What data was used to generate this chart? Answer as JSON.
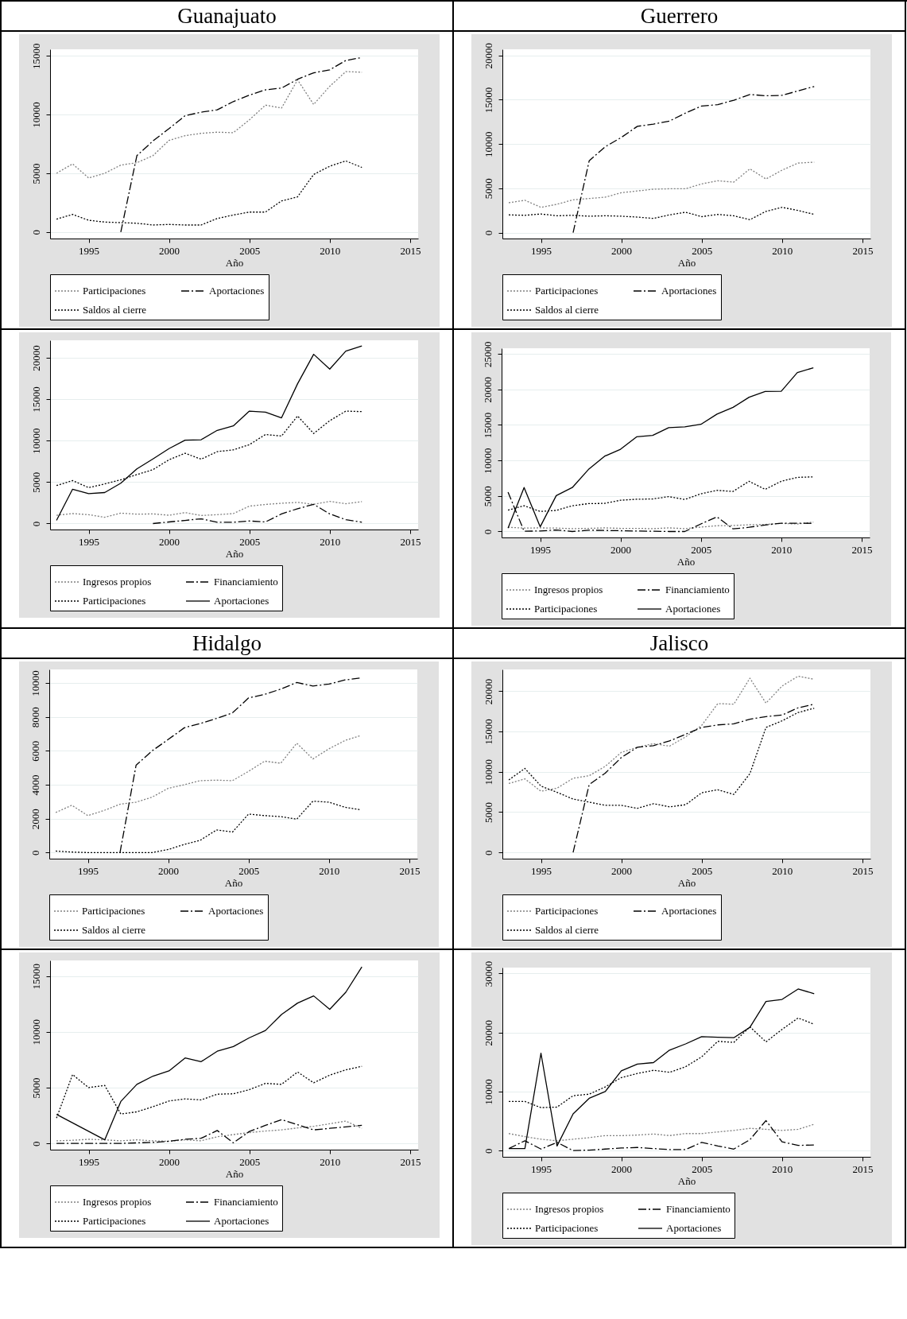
{
  "chart_data": [
    {
      "type": "line",
      "title": "Guanajuato",
      "xlabel": "Año",
      "x": [
        1993,
        1994,
        1995,
        1996,
        1997,
        1998,
        1999,
        2000,
        2001,
        2002,
        2003,
        2004,
        2005,
        2006,
        2007,
        2008,
        2009,
        2010,
        2011,
        2012
      ],
      "xlim": [
        1992.6,
        2015.5
      ],
      "xticks": [
        1995,
        2000,
        2005,
        2010,
        2015
      ],
      "ylim": [
        -550,
        15550
      ],
      "yticks": [
        0,
        5000,
        10000,
        15000
      ],
      "grid": "y",
      "legend": "bottom",
      "series": [
        {
          "name": "Participaciones",
          "color": "#808080",
          "line_style": "dotted",
          "values": [
            5000,
            5800,
            4600,
            5000,
            5700,
            5900,
            6500,
            7800,
            8200,
            8400,
            8500,
            8450,
            9550,
            10800,
            10550,
            12950,
            10850,
            12400,
            13650,
            13600
          ]
        },
        {
          "name": "Aportaciones",
          "color": "#000000",
          "line_style": "dashed",
          "values": [
            null,
            null,
            null,
            null,
            0,
            6500,
            7750,
            8800,
            9900,
            10200,
            10400,
            11100,
            11650,
            12100,
            12250,
            13000,
            13550,
            13800,
            14600,
            14850
          ]
        },
        {
          "name": "Saldos al cierre",
          "color": "#000000",
          "line_style": "dotted",
          "values": [
            1100,
            1500,
            1000,
            850,
            800,
            750,
            600,
            650,
            600,
            600,
            1150,
            1450,
            1700,
            1700,
            2650,
            3000,
            4900,
            5600,
            6050,
            5500
          ]
        }
      ]
    },
    {
      "type": "line",
      "title": "Guerrero",
      "xlabel": "Año",
      "x": [
        1993,
        1994,
        1995,
        1996,
        1997,
        1998,
        1999,
        2000,
        2001,
        2002,
        2003,
        2004,
        2005,
        2006,
        2007,
        2008,
        2009,
        2010,
        2011,
        2012
      ],
      "xlim": [
        1992.6,
        2015.5
      ],
      "xticks": [
        1995,
        2000,
        2005,
        2010,
        2015
      ],
      "ylim": [
        -670,
        20700
      ],
      "yticks": [
        0,
        5000,
        10000,
        15000,
        20000
      ],
      "grid": "y",
      "legend": "bottom",
      "series": [
        {
          "name": "Participaciones",
          "color": "#808080",
          "line_style": "dotted",
          "values": [
            3370,
            3650,
            2850,
            3200,
            3700,
            3850,
            4000,
            4500,
            4700,
            4900,
            4950,
            4950,
            5500,
            5850,
            5700,
            7200,
            6050,
            7050,
            7850,
            7950
          ]
        },
        {
          "name": "Aportaciones",
          "color": "#000000",
          "line_style": "dashed",
          "values": [
            null,
            null,
            null,
            null,
            0,
            8100,
            9700,
            10750,
            12000,
            12250,
            12600,
            13500,
            14300,
            14450,
            14950,
            15600,
            15450,
            15500,
            16000,
            16500
          ]
        },
        {
          "name": "Saldos al cierre",
          "color": "#000000",
          "line_style": "dotted",
          "values": [
            2000,
            1950,
            2100,
            1900,
            1950,
            1850,
            1900,
            1850,
            1750,
            1600,
            2000,
            2300,
            1800,
            2050,
            1900,
            1450,
            2400,
            2850,
            2500,
            2050
          ]
        }
      ]
    },
    {
      "type": "line",
      "xlabel": "Año",
      "x": [
        1993,
        1994,
        1995,
        1996,
        1997,
        1998,
        1999,
        2000,
        2001,
        2002,
        2003,
        2004,
        2005,
        2006,
        2007,
        2008,
        2009,
        2010,
        2011,
        2012
      ],
      "xlim": [
        1992.6,
        2015.5
      ],
      "xticks": [
        1995,
        2000,
        2005,
        2010,
        2015
      ],
      "ylim": [
        -720,
        22100
      ],
      "yticks": [
        0,
        5000,
        10000,
        15000,
        20000
      ],
      "grid": "y",
      "legend": "bottom",
      "series": [
        {
          "name": "Ingresos propios",
          "color": "#808080",
          "line_style": "dotted",
          "values": [
            1000,
            1200,
            1070,
            750,
            1250,
            1130,
            1160,
            1000,
            1320,
            970,
            1070,
            1200,
            2100,
            2300,
            2450,
            2550,
            2320,
            2670,
            2390,
            2640
          ]
        },
        {
          "name": "Financiamiento",
          "color": "#000000",
          "line_style": "dashed",
          "values": [
            null,
            null,
            null,
            null,
            null,
            null,
            0,
            190,
            380,
            570,
            160,
            160,
            310,
            190,
            1160,
            1790,
            2320,
            1160,
            470,
            160
          ]
        },
        {
          "name": "Participaciones",
          "color": "#000000",
          "line_style": "dotted",
          "values": [
            4580,
            5180,
            4330,
            4770,
            5270,
            5900,
            6500,
            7690,
            8480,
            7760,
            8670,
            8890,
            9510,
            10740,
            10550,
            12970,
            10860,
            12400,
            13560,
            13500
          ]
        },
        {
          "name": "Aportaciones",
          "color": "#000000",
          "line_style": "solid",
          "values": [
            380,
            4140,
            3610,
            3740,
            4870,
            6590,
            7790,
            9040,
            10050,
            10110,
            11240,
            11770,
            13560,
            13440,
            12750,
            16860,
            20410,
            18620,
            20790,
            21410
          ]
        }
      ]
    },
    {
      "type": "line",
      "xlabel": "Año",
      "x": [
        1993,
        1994,
        1995,
        1996,
        1997,
        1998,
        1999,
        2000,
        2001,
        2002,
        2003,
        2004,
        2005,
        2006,
        2007,
        2008,
        2009,
        2010,
        2011,
        2012
      ],
      "xlim": [
        1992.6,
        2015.5
      ],
      "xticks": [
        1995,
        2000,
        2005,
        2010,
        2015
      ],
      "ylim": [
        -840,
        25800
      ],
      "yticks": [
        0,
        5000,
        10000,
        15000,
        20000,
        25000
      ],
      "grid": "y",
      "legend": "bottom",
      "series": [
        {
          "name": "Ingresos propios",
          "color": "#808080",
          "line_style": "dotted",
          "values": [
            590,
            480,
            510,
            480,
            400,
            440,
            510,
            440,
            440,
            400,
            510,
            400,
            620,
            810,
            840,
            950,
            990,
            1140,
            1060,
            1320
          ]
        },
        {
          "name": "Financiamiento",
          "color": "#000000",
          "line_style": "dashed",
          "values": [
            5530,
            40,
            70,
            220,
            0,
            180,
            150,
            110,
            70,
            40,
            0,
            0,
            1060,
            2050,
            370,
            590,
            920,
            1170,
            1170,
            1140
          ]
        },
        {
          "name": "Participaciones",
          "color": "#000000",
          "line_style": "dotted",
          "values": [
            3000,
            3630,
            2820,
            2970,
            3630,
            3920,
            3960,
            4400,
            4540,
            4580,
            4910,
            4510,
            5310,
            5790,
            5640,
            7070,
            5930,
            7070,
            7620,
            7690
          ]
        },
        {
          "name": "Aportaciones",
          "color": "#000000",
          "line_style": "solid",
          "values": [
            480,
            6190,
            660,
            5050,
            6190,
            8720,
            10590,
            11580,
            13330,
            13520,
            14620,
            14730,
            15090,
            16520,
            17470,
            18900,
            19710,
            19740,
            22380,
            23040
          ]
        }
      ]
    },
    {
      "type": "line",
      "title": "Hidalgo",
      "xlabel": "Año",
      "x": [
        1993,
        1994,
        1995,
        1996,
        1997,
        1998,
        1999,
        2000,
        2001,
        2002,
        2003,
        2004,
        2005,
        2006,
        2007,
        2008,
        2009,
        2010,
        2011,
        2012
      ],
      "xlim": [
        1992.6,
        2015.5
      ],
      "xticks": [
        1995,
        2000,
        2005,
        2010,
        2015
      ],
      "ylim": [
        -360,
        10800
      ],
      "yticks": [
        0,
        2000,
        4000,
        6000,
        8000,
        10000
      ],
      "grid": "y",
      "legend": "bottom",
      "series": [
        {
          "name": "Participaciones",
          "color": "#808080",
          "line_style": "dotted",
          "values": [
            2360,
            2790,
            2180,
            2480,
            2850,
            2970,
            3270,
            3790,
            4000,
            4240,
            4270,
            4240,
            4790,
            5390,
            5270,
            6450,
            5520,
            6120,
            6610,
            6910
          ]
        },
        {
          "name": "Aportaciones",
          "color": "#000000",
          "line_style": "dashed",
          "values": [
            null,
            null,
            null,
            null,
            0,
            5150,
            6000,
            6670,
            7360,
            7610,
            7910,
            8240,
            9120,
            9330,
            9640,
            10030,
            9820,
            9940,
            10180,
            10300
          ]
        },
        {
          "name": "Saldos al cierre",
          "color": "#000000",
          "line_style": "dotted",
          "values": [
            90,
            30,
            0,
            0,
            0,
            0,
            0,
            180,
            480,
            730,
            1330,
            1210,
            2270,
            2180,
            2120,
            1970,
            3030,
            2970,
            2670,
            2520
          ]
        }
      ]
    },
    {
      "type": "line",
      "title": "Jalisco",
      "xlabel": "Año",
      "x": [
        1993,
        1994,
        1995,
        1996,
        1997,
        1998,
        1999,
        2000,
        2001,
        2002,
        2003,
        2004,
        2005,
        2006,
        2007,
        2008,
        2009,
        2010,
        2011,
        2012
      ],
      "xlim": [
        1992.6,
        2015.5
      ],
      "xticks": [
        1995,
        2000,
        2005,
        2010,
        2015
      ],
      "ylim": [
        -770,
        22700
      ],
      "yticks": [
        0,
        5000,
        10000,
        15000,
        20000
      ],
      "grid": "y",
      "legend": "bottom",
      "series": [
        {
          "name": "Participaciones",
          "color": "#808080",
          "line_style": "dotted",
          "values": [
            8550,
            9130,
            7590,
            7970,
            9200,
            9520,
            10680,
            12410,
            13050,
            13500,
            13180,
            14340,
            15760,
            18460,
            18390,
            21610,
            18520,
            20640,
            21860,
            21480
          ]
        },
        {
          "name": "Aportaciones",
          "color": "#000000",
          "line_style": "dashed",
          "values": [
            null,
            null,
            null,
            null,
            0,
            8420,
            9840,
            11770,
            13050,
            13250,
            13830,
            14660,
            15500,
            15820,
            15950,
            16530,
            16850,
            17040,
            17940,
            18390
          ]
        },
        {
          "name": "Saldos al cierre",
          "color": "#000000",
          "line_style": "dotted",
          "values": [
            9000,
            10420,
            8230,
            7460,
            6620,
            6240,
            5850,
            5850,
            5470,
            6050,
            5660,
            5920,
            7400,
            7780,
            7200,
            9770,
            15500,
            16330,
            17360,
            17880
          ]
        }
      ]
    },
    {
      "type": "line",
      "xlabel": "Año",
      "x": [
        1993,
        1994,
        1995,
        1996,
        1997,
        1998,
        1999,
        2000,
        2001,
        2002,
        2003,
        2004,
        2005,
        2006,
        2007,
        2008,
        2009,
        2010,
        2011,
        2012
      ],
      "xlim": [
        1992.6,
        2015.5
      ],
      "xticks": [
        1995,
        2000,
        2005,
        2010,
        2015
      ],
      "ylim": [
        -560,
        16400
      ],
      "yticks": [
        0,
        5000,
        10000,
        15000
      ],
      "grid": "y",
      "legend": "bottom",
      "series": [
        {
          "name": "Ingresos propios",
          "color": "#808080",
          "line_style": "dotted",
          "values": [
            230,
            280,
            370,
            320,
            230,
            320,
            230,
            190,
            320,
            230,
            600,
            790,
            970,
            1110,
            1210,
            1390,
            1530,
            1760,
            2000,
            1350
          ]
        },
        {
          "name": "Financiamiento",
          "color": "#000000",
          "line_style": "dashed",
          "values": [
            0,
            0,
            0,
            0,
            0,
            50,
            90,
            190,
            370,
            460,
            1160,
            50,
            1070,
            1620,
            2130,
            1670,
            1210,
            1350,
            1480,
            1620
          ]
        },
        {
          "name": "Participaciones",
          "color": "#000000",
          "line_style": "dotted",
          "values": [
            2270,
            6170,
            5000,
            5200,
            2640,
            2830,
            3290,
            3800,
            3990,
            3900,
            4410,
            4450,
            4820,
            5380,
            5290,
            6400,
            5430,
            6120,
            6590,
            6910
          ]
        },
        {
          "name": "Aportaciones",
          "color": "#000000",
          "line_style": "solid",
          "values": [
            2600,
            null,
            null,
            320,
            3760,
            5290,
            6030,
            6500,
            7660,
            7330,
            8260,
            8680,
            9470,
            10120,
            11550,
            12580,
            13220,
            12020,
            13550,
            15820
          ]
        }
      ]
    },
    {
      "type": "line",
      "xlabel": "Año",
      "x": [
        1993,
        1994,
        1995,
        1996,
        1997,
        1998,
        1999,
        2000,
        2001,
        2002,
        2003,
        2004,
        2005,
        2006,
        2007,
        2008,
        2009,
        2010,
        2011,
        2012
      ],
      "xlim": [
        1992.6,
        2015.5
      ],
      "xticks": [
        1995,
        2000,
        2005,
        2010,
        2015
      ],
      "ylim": [
        -1050,
        31000
      ],
      "yticks": [
        0,
        10000,
        20000,
        30000
      ],
      "grid": "y",
      "legend": "bottom",
      "series": [
        {
          "name": "Ingresos propios",
          "color": "#808080",
          "line_style": "dotted",
          "values": [
            2890,
            2370,
            1930,
            1670,
            1930,
            2190,
            2540,
            2540,
            2630,
            2810,
            2540,
            2890,
            2890,
            3160,
            3420,
            3770,
            3600,
            3420,
            3600,
            4470
          ]
        },
        {
          "name": "Financiamiento",
          "color": "#000000",
          "line_style": "dashed",
          "values": [
            350,
            1670,
            260,
            1400,
            0,
            90,
            260,
            440,
            530,
            350,
            180,
            180,
            1400,
            790,
            260,
            1840,
            5090,
            1490,
            880,
            960
          ]
        },
        {
          "name": "Participaciones",
          "color": "#000000",
          "line_style": "dotted",
          "values": [
            8330,
            8330,
            7280,
            7370,
            9300,
            9560,
            10790,
            12370,
            13070,
            13600,
            13250,
            14210,
            15880,
            18510,
            18330,
            20960,
            18420,
            20530,
            22460,
            21400
          ]
        },
        {
          "name": "Aportaciones",
          "color": "#000000",
          "line_style": "solid",
          "values": [
            350,
            350,
            16490,
            790,
            6230,
            8860,
            10000,
            13510,
            14650,
            14910,
            17020,
            18070,
            19300,
            19210,
            19120,
            20880,
            25260,
            25610,
            27370,
            26580
          ]
        }
      ]
    }
  ]
}
